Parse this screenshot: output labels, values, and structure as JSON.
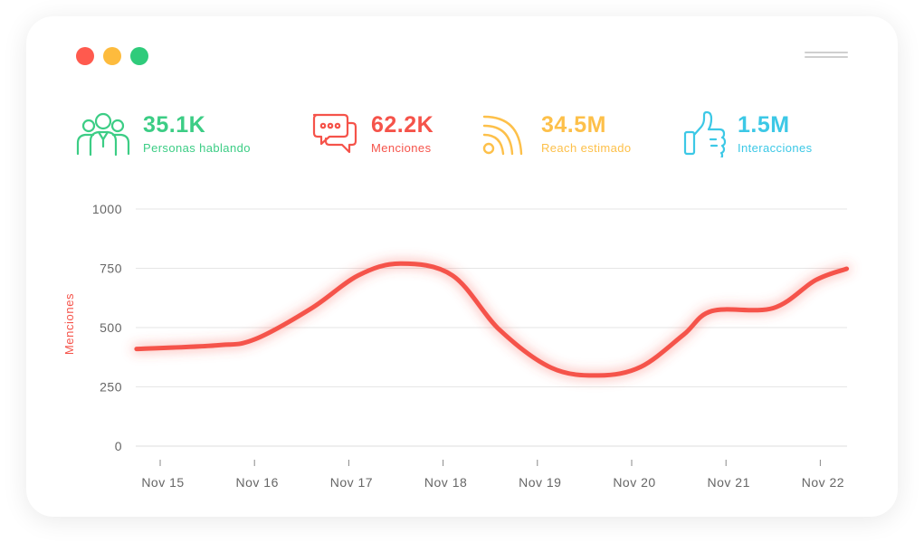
{
  "window": {
    "dots": [
      {
        "name": "close",
        "color": "#ff5a4e"
      },
      {
        "name": "minimize",
        "color": "#fdbb3d"
      },
      {
        "name": "maximize",
        "color": "#2fcb7b"
      }
    ]
  },
  "stats": [
    {
      "value": "35.1K",
      "label": "Personas hablando",
      "icon": "people-icon",
      "color": "#3ccd85"
    },
    {
      "value": "62.2K",
      "label": "Menciones",
      "icon": "chat-bubbles-icon",
      "color": "#f5534a"
    },
    {
      "value": "34.5M",
      "label": "Reach estimado",
      "icon": "rss-icon",
      "color": "#fdc04a"
    },
    {
      "value": "1.5M",
      "label": "Interacciones",
      "icon": "thumbs-up-icon",
      "color": "#3cc8e6"
    }
  ],
  "chart_data": {
    "type": "line",
    "title": "",
    "xlabel": "",
    "ylabel": "Menciones",
    "ylim": [
      0,
      1000
    ],
    "yticks": [
      0,
      250,
      500,
      750,
      1000
    ],
    "grid": true,
    "x_ticks": [
      "Nov 15",
      "Nov 16",
      "Nov 17",
      "Nov 18",
      "Nov 19",
      "Nov 20",
      "Nov 21",
      "Nov 22"
    ],
    "series": [
      {
        "name": "Menciones",
        "color": "#f5534a",
        "points": [
          {
            "x": -0.25,
            "y": 410
          },
          {
            "x": 0.6,
            "y": 425
          },
          {
            "x": 1.0,
            "y": 450
          },
          {
            "x": 1.6,
            "y": 580
          },
          {
            "x": 2.1,
            "y": 720
          },
          {
            "x": 2.55,
            "y": 770
          },
          {
            "x": 3.1,
            "y": 720
          },
          {
            "x": 3.6,
            "y": 490
          },
          {
            "x": 4.15,
            "y": 330
          },
          {
            "x": 4.65,
            "y": 298
          },
          {
            "x": 5.1,
            "y": 335
          },
          {
            "x": 5.55,
            "y": 470
          },
          {
            "x": 5.85,
            "y": 570
          },
          {
            "x": 6.5,
            "y": 582
          },
          {
            "x": 6.95,
            "y": 700
          },
          {
            "x": 7.28,
            "y": 748
          }
        ]
      }
    ]
  }
}
